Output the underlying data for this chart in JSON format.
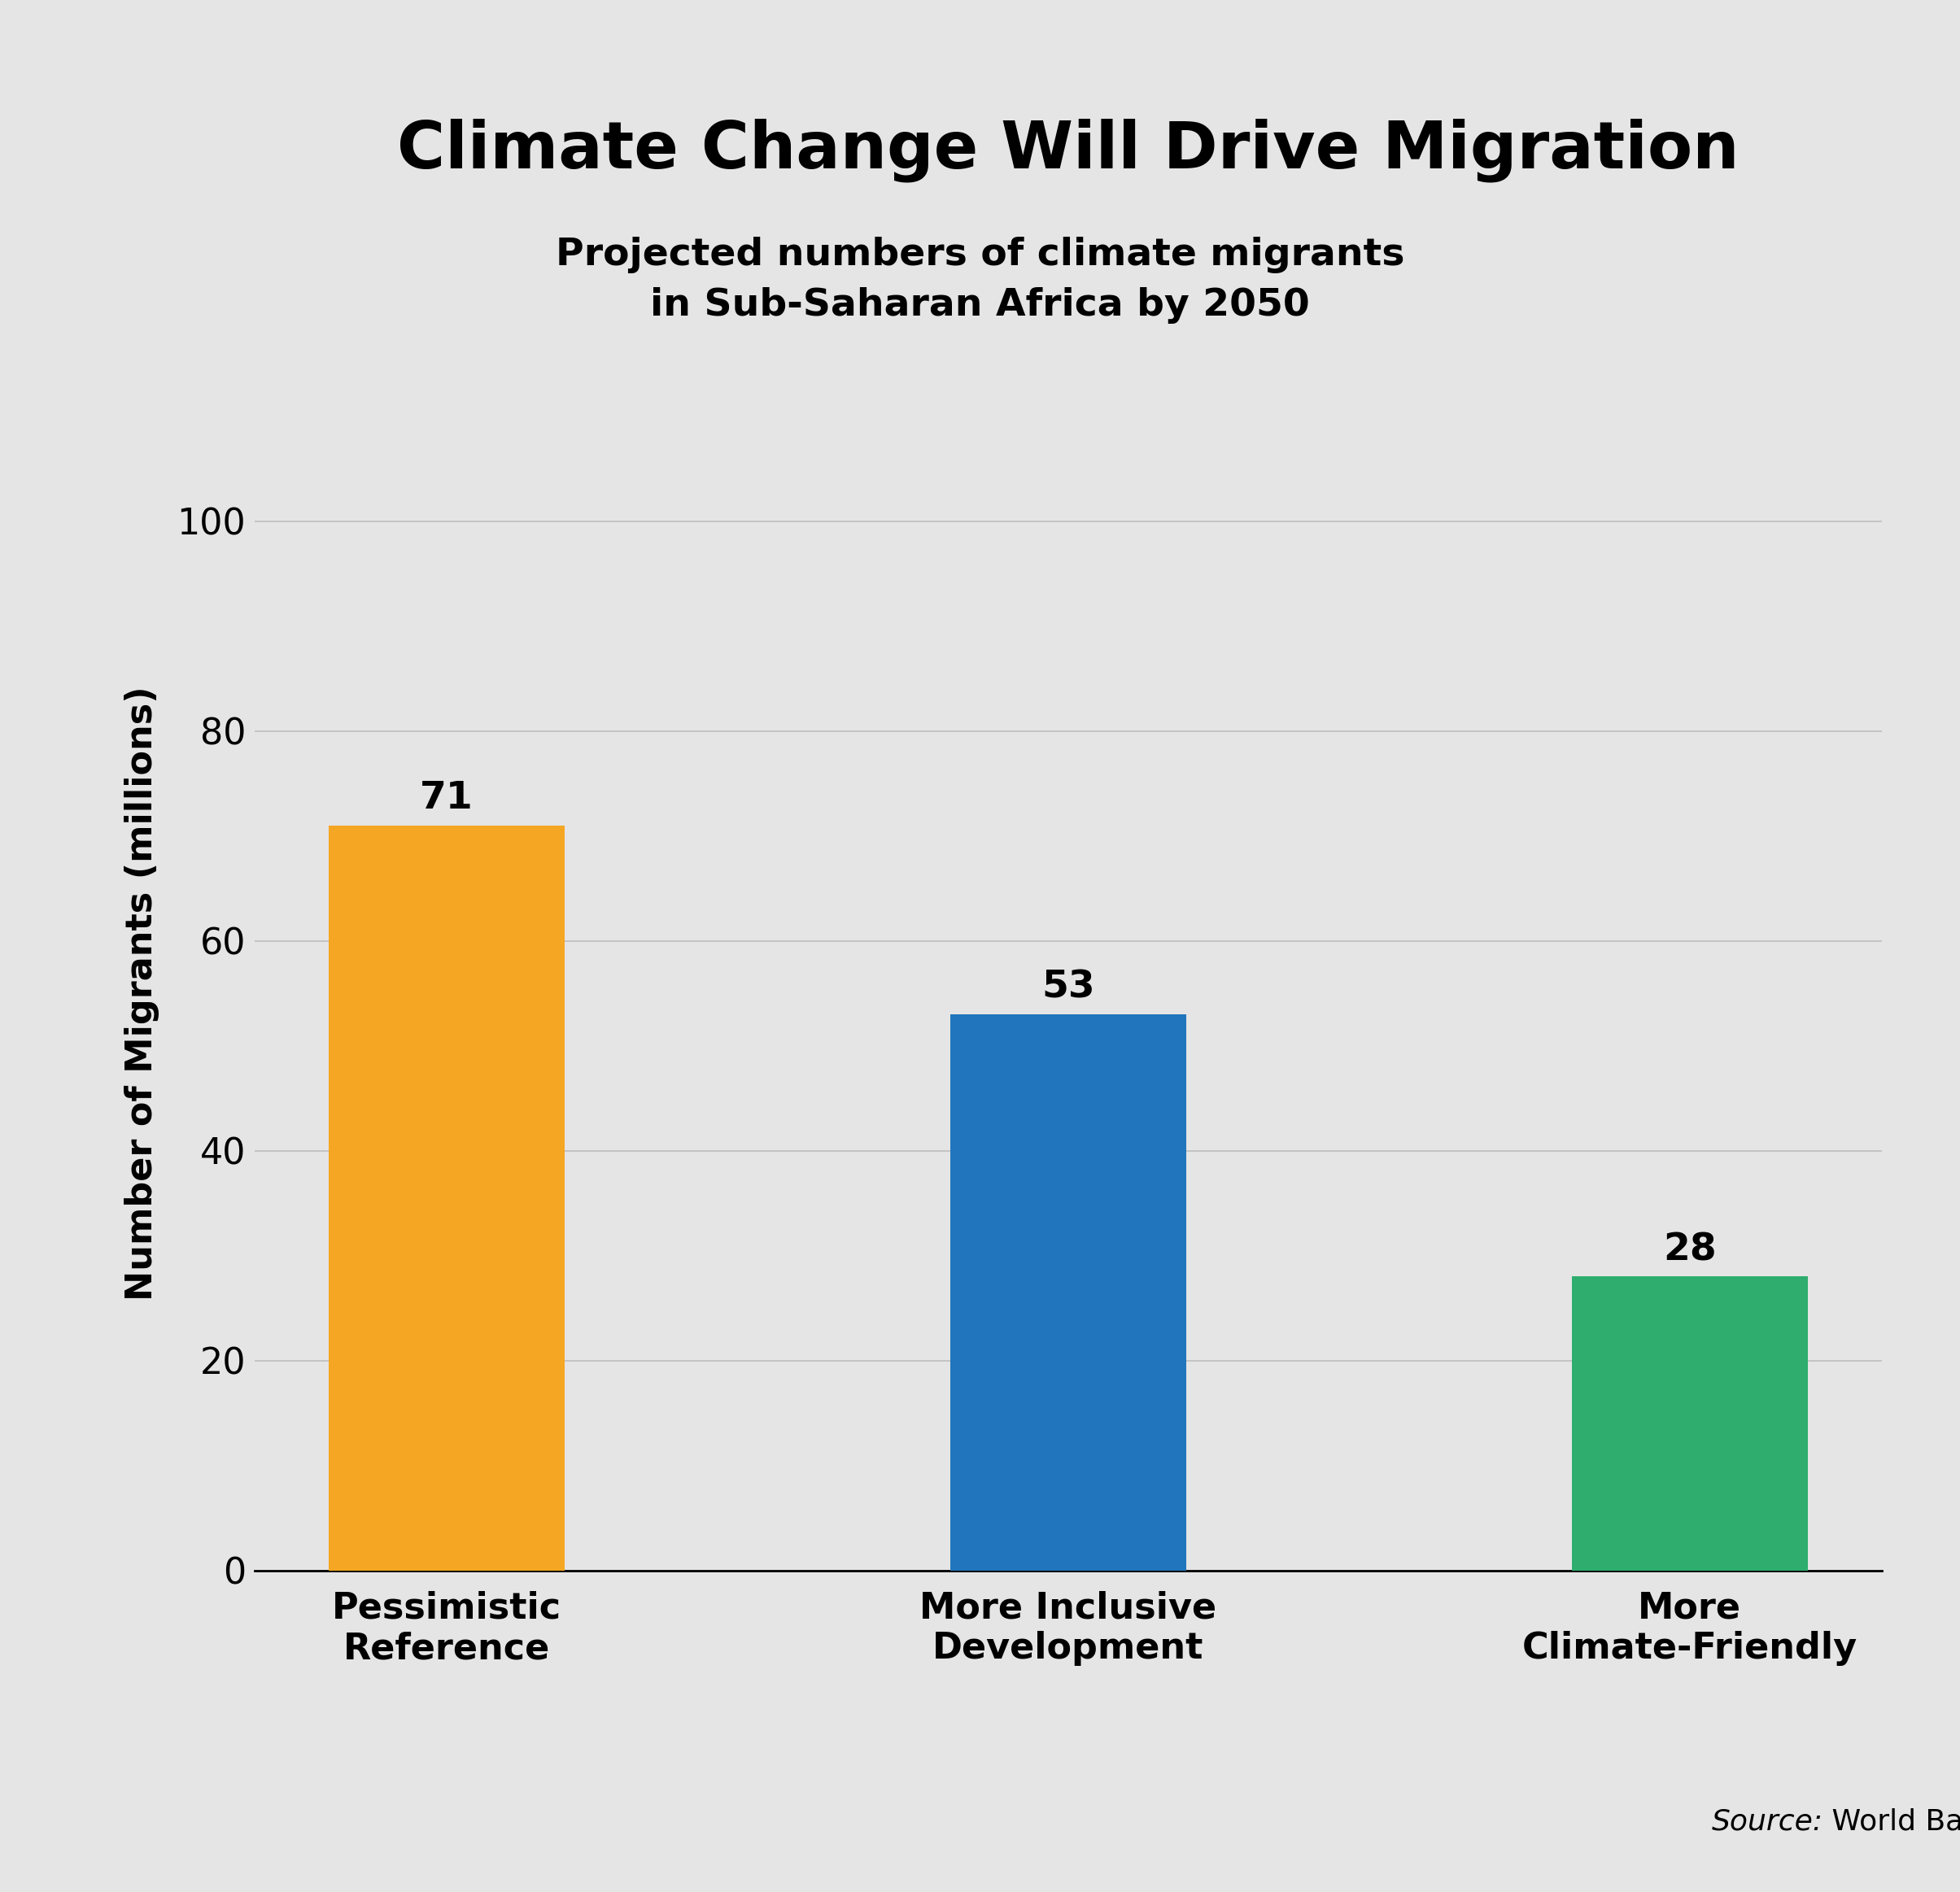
{
  "title": "Climate Change Will Drive Migration",
  "subtitle": "Projected numbers of climate migrants\nin Sub-Saharan Africa by 2050",
  "categories": [
    "Pessimistic\nReference",
    "More Inclusive\nDevelopment",
    "More\nClimate-Friendly"
  ],
  "values": [
    71,
    53,
    28
  ],
  "bar_colors": [
    "#F5A623",
    "#2175BC",
    "#2EAD6E"
  ],
  "ylabel": "Number of Migrants (millions)",
  "ylim": [
    0,
    110
  ],
  "yticks": [
    0,
    20,
    40,
    60,
    80,
    100
  ],
  "source_italic": "Source:",
  "source_normal": " World Bank",
  "background_color": "#E5E5E5",
  "title_fontsize": 58,
  "subtitle_fontsize": 34,
  "ylabel_fontsize": 32,
  "ytick_fontsize": 32,
  "xtick_fontsize": 32,
  "bar_label_fontsize": 34,
  "source_fontsize": 26,
  "bar_width": 0.38,
  "grid_color": "#BEBEBE"
}
